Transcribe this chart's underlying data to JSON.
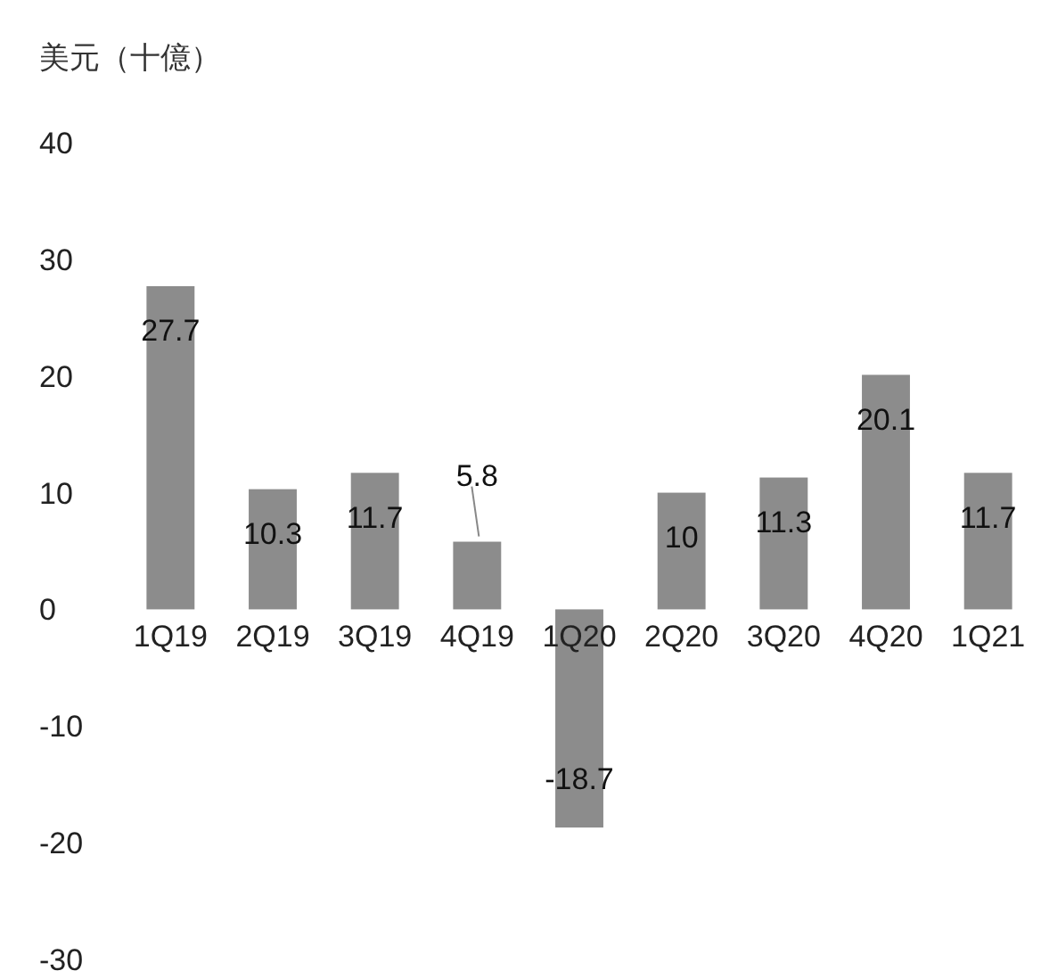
{
  "chart_data": {
    "type": "bar",
    "title": "美元（十億）",
    "categories": [
      "1Q19",
      "2Q19",
      "3Q19",
      "4Q19",
      "1Q20",
      "2Q20",
      "3Q20",
      "4Q20",
      "1Q21"
    ],
    "values": [
      27.7,
      10.3,
      11.7,
      5.8,
      -18.7,
      10,
      11.3,
      20.1,
      11.7
    ],
    "color": "#8c8c8c",
    "ylim": [
      -30,
      40
    ],
    "yticks": [
      -30,
      -20,
      -10,
      0,
      10,
      20,
      30,
      40
    ],
    "data_labels": true,
    "grid": false
  }
}
